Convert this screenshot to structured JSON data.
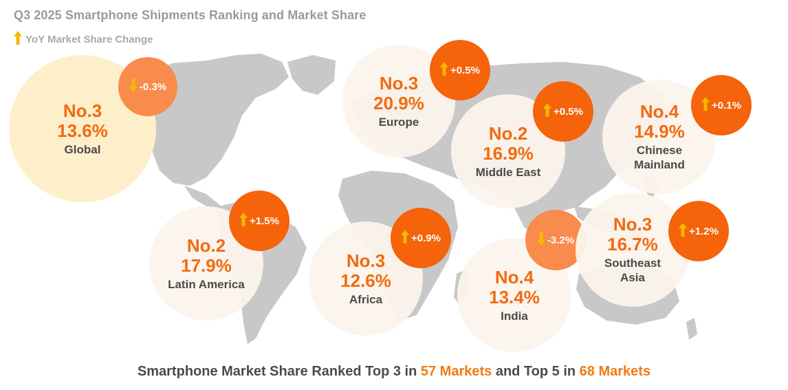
{
  "title": "Q3 2025 Smartphone Shipments Ranking and Market Share",
  "legend": {
    "label": "YoY Market Share Change",
    "icon": "arrow-up-icon",
    "icon_color": "#f5b800"
  },
  "colors": {
    "rank_text": "#f26a10",
    "badge_up": "#f5630a",
    "badge_down": "#f98b4c",
    "bubble_region": "#fcf4ec",
    "bubble_global": "#fdefc9",
    "map_land": "#c8c8c8",
    "arrow": "#f5b800"
  },
  "chart_data": {
    "type": "bubble-map",
    "title": "Q3 2025 Smartphone Shipments Ranking and Market Share",
    "regions": [
      {
        "id": "global",
        "rank": "No.3",
        "share": "13.6%",
        "name": [
          "Global"
        ],
        "change": "-0.3%",
        "direction": "down"
      },
      {
        "id": "europe",
        "rank": "No.3",
        "share": "20.9%",
        "name": [
          "Europe"
        ],
        "change": "+0.5%",
        "direction": "up"
      },
      {
        "id": "middleeast",
        "rank": "No.2",
        "share": "16.9%",
        "name": [
          "Middle East"
        ],
        "change": "+0.5%",
        "direction": "up"
      },
      {
        "id": "china",
        "rank": "No.4",
        "share": "14.9%",
        "name": [
          "Chinese",
          "Mainland"
        ],
        "change": "+0.1%",
        "direction": "up"
      },
      {
        "id": "latam",
        "rank": "No.2",
        "share": "17.9%",
        "name": [
          "Latin America"
        ],
        "change": "+1.5%",
        "direction": "up"
      },
      {
        "id": "africa",
        "rank": "No.3",
        "share": "12.6%",
        "name": [
          "Africa"
        ],
        "change": "+0.9%",
        "direction": "up"
      },
      {
        "id": "india",
        "rank": "No.4",
        "share": "13.4%",
        "name": [
          "India"
        ],
        "change": "-3.2%",
        "direction": "down"
      },
      {
        "id": "sea",
        "rank": "No.3",
        "share": "16.7%",
        "name": [
          "Southeast",
          "Asia"
        ],
        "change": "+1.2%",
        "direction": "up"
      }
    ]
  },
  "footer": {
    "part1": "Smartphone Market Share Ranked Top 3 in ",
    "top3_markets": "57 Markets",
    "part2": " and Top 5 in ",
    "top5_markets": "68 Markets"
  }
}
